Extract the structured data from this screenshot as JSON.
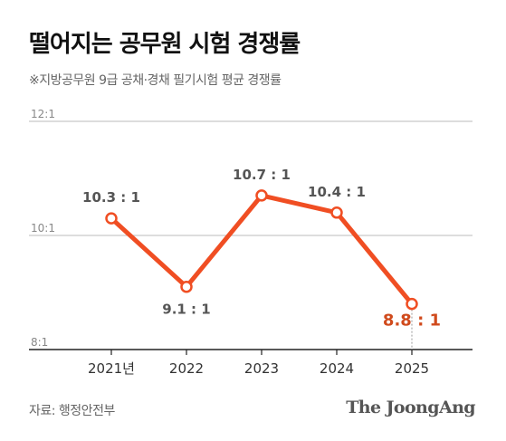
{
  "title": "떨어지는 공무원 시험 경쟁률",
  "subtitle": "※지방공무원 9급 공채·경채 필기시험 평균 경쟁률",
  "source": "자료: 행정안전부",
  "brand": "The JoongAng",
  "colors": {
    "line": "#f04e23",
    "last_label": "#d04a1c",
    "grid": "#bbbbbb",
    "axis": "#222222"
  },
  "chart_data": {
    "type": "line",
    "categories": [
      "2021년",
      "2022",
      "2023",
      "2024",
      "2025"
    ],
    "values": [
      10.3,
      9.1,
      10.7,
      10.4,
      8.8
    ],
    "data_labels": [
      "10.3 : 1",
      "9.1 : 1",
      "10.7 : 1",
      "10.4 : 1",
      "8.8 : 1"
    ],
    "y_tick_labels": [
      "12:1",
      "10:1",
      "8:1"
    ],
    "y_ticks": [
      12,
      10,
      8
    ],
    "ylim": [
      8,
      12
    ],
    "grid": true,
    "legend": "none"
  }
}
